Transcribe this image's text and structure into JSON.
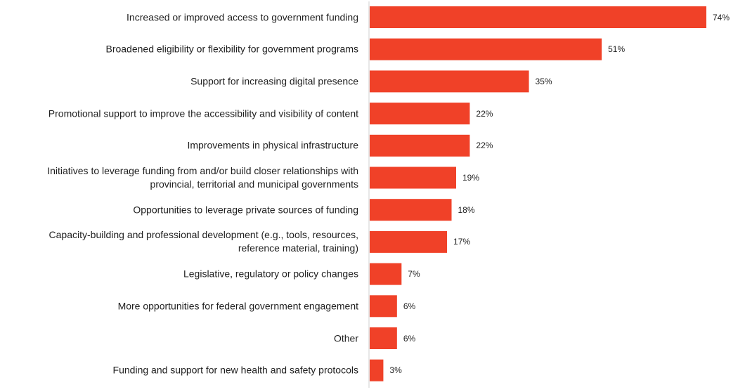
{
  "chart_data": {
    "type": "bar",
    "orientation": "horizontal",
    "categories": [
      "Increased or improved access to government funding",
      "Broadened eligibility or flexibility for government programs",
      "Support for increasing digital presence",
      "Promotional support to improve the accessibility and visibility of content",
      "Improvements in physical infrastructure",
      "Initiatives to leverage funding from and/or build closer relationships with provincial, territorial and municipal governments",
      "Opportunities to leverage private sources of funding",
      "Capacity-building and professional development (e.g., tools, resources, reference material, training)",
      "Legislative, regulatory or policy changes",
      "More opportunities for federal government engagement",
      "Other",
      "Funding and support for new health and safety protocols"
    ],
    "values": [
      74,
      51,
      35,
      22,
      22,
      19,
      18,
      17,
      7,
      6,
      6,
      3
    ],
    "value_labels": [
      "74%",
      "51%",
      "35%",
      "22%",
      "22%",
      "19%",
      "18%",
      "17%",
      "7%",
      "6%",
      "6%",
      "3%"
    ],
    "title": "",
    "xlabel": "",
    "ylabel": "",
    "xlim": [
      0,
      74
    ],
    "grid": false,
    "legend": "none",
    "bar_color": "#f04128",
    "axis_color": "#d0d0d0"
  }
}
